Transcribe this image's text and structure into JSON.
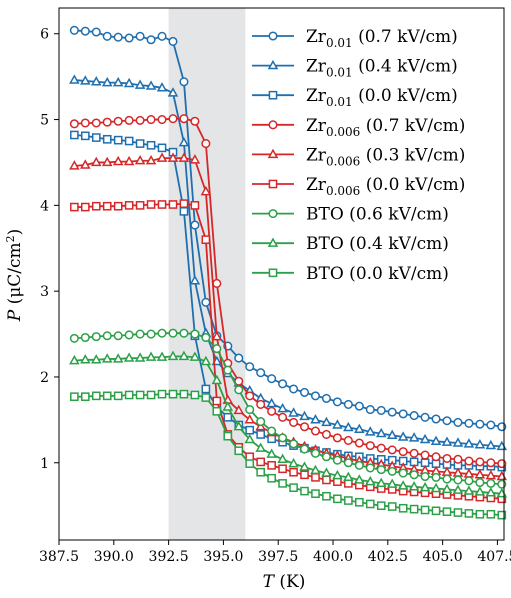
{
  "chart_data": {
    "type": "line",
    "xlabel_var": "T",
    "xlabel_unit": "(K)",
    "ylabel_var": "P",
    "ylabel_unit_pre": "(μC/cm",
    "ylabel_unit_sup": "2",
    "ylabel_unit_post": ")",
    "xlim": [
      387.5,
      407.8
    ],
    "ylim": [
      0.1,
      6.3
    ],
    "xticks": [
      387.5,
      390.0,
      392.5,
      395.0,
      397.5,
      400.0,
      402.5,
      405.0,
      407.5
    ],
    "xtick_labels": [
      "387.5",
      "390.0",
      "392.5",
      "395.0",
      "397.5",
      "400.0",
      "402.5",
      "405.0",
      "407.5"
    ],
    "yticks": [
      1,
      2,
      3,
      4,
      5,
      6
    ],
    "ytick_labels": [
      "1",
      "2",
      "3",
      "4",
      "5",
      "6"
    ],
    "grid": false,
    "legend_position": "top-right",
    "shaded_region": {
      "x": [
        392.5,
        396.0
      ],
      "color": "#e4e5e7"
    },
    "series": [
      {
        "name_main": "Zr",
        "name_sub": "0.01",
        "name_suffix": " (0.7 kV/cm)",
        "color": "#1f6faf",
        "marker": "circle",
        "x": [
          388.2,
          388.7,
          389.2,
          389.7,
          390.2,
          390.7,
          391.2,
          391.7,
          392.2,
          392.7,
          393.2,
          393.7,
          394.2,
          394.7,
          395.2,
          395.7,
          396.2,
          396.7,
          397.2,
          397.7,
          398.2,
          398.7,
          399.2,
          399.7,
          400.2,
          400.7,
          401.2,
          401.7,
          402.2,
          402.7,
          403.2,
          403.7,
          404.2,
          404.7,
          405.2,
          405.7,
          406.2,
          406.7,
          407.2,
          407.7
        ],
        "y": [
          6.04,
          6.03,
          6.02,
          5.97,
          5.96,
          5.95,
          5.97,
          5.93,
          5.97,
          5.91,
          5.44,
          3.77,
          2.87,
          2.48,
          2.36,
          2.22,
          2.12,
          2.05,
          1.98,
          1.92,
          1.86,
          1.82,
          1.78,
          1.75,
          1.71,
          1.68,
          1.66,
          1.62,
          1.61,
          1.59,
          1.57,
          1.55,
          1.53,
          1.51,
          1.49,
          1.47,
          1.46,
          1.45,
          1.44,
          1.42
        ]
      },
      {
        "name_main": "Zr",
        "name_sub": "0.01",
        "name_suffix": " (0.4 kV/cm)",
        "color": "#1f6faf",
        "marker": "triangle",
        "x": [
          388.2,
          388.7,
          389.2,
          389.7,
          390.2,
          390.7,
          391.2,
          391.7,
          392.2,
          392.7,
          393.2,
          393.7,
          394.2,
          394.7,
          395.2,
          395.7,
          396.2,
          396.7,
          397.2,
          397.7,
          398.2,
          398.7,
          399.2,
          399.7,
          400.2,
          400.7,
          401.2,
          401.7,
          402.2,
          402.7,
          403.2,
          403.7,
          404.2,
          404.7,
          405.2,
          405.7,
          406.2,
          406.7,
          407.2,
          407.7
        ],
        "y": [
          5.46,
          5.45,
          5.44,
          5.43,
          5.43,
          5.42,
          5.4,
          5.39,
          5.37,
          5.31,
          4.73,
          3.12,
          2.51,
          2.18,
          2.04,
          1.93,
          1.84,
          1.75,
          1.69,
          1.63,
          1.58,
          1.54,
          1.5,
          1.47,
          1.44,
          1.41,
          1.39,
          1.36,
          1.34,
          1.32,
          1.3,
          1.29,
          1.27,
          1.25,
          1.24,
          1.23,
          1.22,
          1.21,
          1.2,
          1.19
        ]
      },
      {
        "name_main": "Zr",
        "name_sub": "0.01",
        "name_suffix": " (0.0 kV/cm)",
        "color": "#1f6faf",
        "marker": "square",
        "x": [
          388.2,
          388.7,
          389.2,
          389.7,
          390.2,
          390.7,
          391.2,
          391.7,
          392.2,
          392.7,
          393.2,
          393.7,
          394.2,
          394.7,
          395.2,
          395.7,
          396.2,
          396.7,
          397.2,
          397.7,
          398.2,
          398.7,
          399.2,
          399.7,
          400.2,
          400.7,
          401.2,
          401.7,
          402.2,
          402.7,
          403.2,
          403.7,
          404.2,
          404.7,
          405.2,
          405.7,
          406.2,
          406.7,
          407.2,
          407.7
        ],
        "y": [
          4.82,
          4.81,
          4.79,
          4.77,
          4.76,
          4.75,
          4.72,
          4.7,
          4.67,
          4.62,
          3.93,
          2.48,
          1.86,
          1.65,
          1.53,
          1.44,
          1.38,
          1.33,
          1.28,
          1.24,
          1.2,
          1.17,
          1.14,
          1.12,
          1.1,
          1.08,
          1.07,
          1.05,
          1.04,
          1.03,
          1.02,
          1.01,
          1.0,
          0.99,
          0.98,
          0.97,
          0.97,
          0.96,
          0.96,
          0.95
        ]
      },
      {
        "name_main": "Zr",
        "name_sub": "0.006",
        "name_suffix": " (0.7 kV/cm)",
        "color": "#d62728",
        "marker": "circle",
        "x": [
          388.2,
          388.7,
          389.2,
          389.7,
          390.2,
          390.7,
          391.2,
          391.7,
          392.2,
          392.7,
          393.2,
          393.7,
          394.2,
          394.7,
          395.2,
          395.7,
          396.2,
          396.7,
          397.2,
          397.7,
          398.2,
          398.7,
          399.2,
          399.7,
          400.2,
          400.7,
          401.2,
          401.7,
          402.2,
          402.7,
          403.2,
          403.7,
          404.2,
          404.7,
          405.2,
          405.7,
          406.2,
          406.7,
          407.2,
          407.7
        ],
        "y": [
          4.95,
          4.96,
          4.96,
          4.97,
          4.98,
          4.99,
          4.99,
          5.0,
          5.0,
          5.01,
          5.01,
          4.98,
          4.72,
          3.09,
          2.16,
          1.95,
          1.78,
          1.68,
          1.6,
          1.53,
          1.47,
          1.42,
          1.37,
          1.33,
          1.29,
          1.26,
          1.23,
          1.2,
          1.17,
          1.15,
          1.13,
          1.11,
          1.09,
          1.07,
          1.05,
          1.04,
          1.02,
          1.01,
          1.0,
          0.99
        ]
      },
      {
        "name_main": "Zr",
        "name_sub": "0.006",
        "name_suffix": " (0.3 kV/cm)",
        "color": "#d62728",
        "marker": "triangle",
        "x": [
          388.2,
          388.7,
          389.2,
          389.7,
          390.2,
          390.7,
          391.2,
          391.7,
          392.2,
          392.7,
          393.2,
          393.7,
          394.2,
          394.7,
          395.2,
          395.7,
          396.2,
          396.7,
          397.2,
          397.7,
          398.2,
          398.7,
          399.2,
          399.7,
          400.2,
          400.7,
          401.2,
          401.7,
          402.2,
          402.7,
          403.2,
          403.7,
          404.2,
          404.7,
          405.2,
          405.7,
          406.2,
          406.7,
          407.2,
          407.7
        ],
        "y": [
          4.46,
          4.47,
          4.5,
          4.5,
          4.51,
          4.51,
          4.52,
          4.52,
          4.55,
          4.55,
          4.55,
          4.53,
          4.16,
          2.47,
          1.73,
          1.61,
          1.5,
          1.42,
          1.35,
          1.29,
          1.24,
          1.19,
          1.15,
          1.11,
          1.08,
          1.05,
          1.02,
          1.0,
          0.98,
          0.96,
          0.94,
          0.92,
          0.91,
          0.9,
          0.89,
          0.88,
          0.87,
          0.86,
          0.85,
          0.84
        ]
      },
      {
        "name_main": "Zr",
        "name_sub": "0.006",
        "name_suffix": " (0.0 kV/cm)",
        "color": "#d62728",
        "marker": "square",
        "x": [
          388.2,
          388.7,
          389.2,
          389.7,
          390.2,
          390.7,
          391.2,
          391.7,
          392.2,
          392.7,
          393.2,
          393.7,
          394.2,
          394.7,
          395.2,
          395.7,
          396.2,
          396.7,
          397.2,
          397.7,
          398.2,
          398.7,
          399.2,
          399.7,
          400.2,
          400.7,
          401.2,
          401.7,
          402.2,
          402.7,
          403.2,
          403.7,
          404.2,
          404.7,
          405.2,
          405.7,
          406.2,
          406.7,
          407.2,
          407.7
        ],
        "y": [
          3.98,
          3.98,
          3.99,
          3.99,
          3.99,
          4.0,
          4.0,
          4.01,
          4.01,
          4.01,
          4.02,
          4.0,
          3.6,
          1.72,
          1.33,
          1.18,
          1.07,
          1.01,
          0.97,
          0.93,
          0.89,
          0.86,
          0.83,
          0.8,
          0.78,
          0.76,
          0.74,
          0.72,
          0.7,
          0.69,
          0.67,
          0.66,
          0.65,
          0.64,
          0.63,
          0.62,
          0.61,
          0.6,
          0.59,
          0.58
        ]
      },
      {
        "name_main": "BTO",
        "name_sub": "",
        "name_suffix": " (0.6 kV/cm)",
        "color": "#2ca048",
        "marker": "circle",
        "x": [
          388.2,
          388.7,
          389.2,
          389.7,
          390.2,
          390.7,
          391.2,
          391.7,
          392.2,
          392.7,
          393.2,
          393.7,
          394.2,
          394.7,
          395.2,
          395.7,
          396.2,
          396.7,
          397.2,
          397.7,
          398.2,
          398.7,
          399.2,
          399.7,
          400.2,
          400.7,
          401.2,
          401.7,
          402.2,
          402.7,
          403.2,
          403.7,
          404.2,
          404.7,
          405.2,
          405.7,
          406.2,
          406.7,
          407.2,
          407.7
        ],
        "y": [
          2.45,
          2.46,
          2.47,
          2.48,
          2.48,
          2.49,
          2.5,
          2.5,
          2.51,
          2.51,
          2.51,
          2.5,
          2.46,
          2.33,
          2.08,
          1.85,
          1.62,
          1.48,
          1.37,
          1.29,
          1.22,
          1.16,
          1.11,
          1.07,
          1.03,
          1.0,
          0.97,
          0.94,
          0.92,
          0.9,
          0.88,
          0.86,
          0.84,
          0.83,
          0.81,
          0.8,
          0.79,
          0.77,
          0.76,
          0.75
        ]
      },
      {
        "name_main": "BTO",
        "name_sub": "",
        "name_suffix": " (0.4 kV/cm)",
        "color": "#2ca048",
        "marker": "triangle",
        "x": [
          388.2,
          388.7,
          389.2,
          389.7,
          390.2,
          390.7,
          391.2,
          391.7,
          392.2,
          392.7,
          393.2,
          393.7,
          394.2,
          394.7,
          395.2,
          395.7,
          396.2,
          396.7,
          397.2,
          397.7,
          398.2,
          398.7,
          399.2,
          399.7,
          400.2,
          400.7,
          401.2,
          401.7,
          402.2,
          402.7,
          403.2,
          403.7,
          404.2,
          404.7,
          405.2,
          405.7,
          406.2,
          406.7,
          407.2,
          407.7
        ],
        "y": [
          2.19,
          2.2,
          2.2,
          2.21,
          2.21,
          2.22,
          2.22,
          2.23,
          2.23,
          2.24,
          2.24,
          2.23,
          2.18,
          1.96,
          1.65,
          1.42,
          1.27,
          1.17,
          1.1,
          1.04,
          0.99,
          0.95,
          0.91,
          0.88,
          0.85,
          0.83,
          0.8,
          0.78,
          0.76,
          0.75,
          0.73,
          0.72,
          0.71,
          0.7,
          0.69,
          0.68,
          0.67,
          0.66,
          0.65,
          0.64
        ]
      },
      {
        "name_main": "BTO",
        "name_sub": "",
        "name_suffix": " (0.0 kV/cm)",
        "color": "#2ca048",
        "marker": "square",
        "x": [
          388.2,
          388.7,
          389.2,
          389.7,
          390.2,
          390.7,
          391.2,
          391.7,
          392.2,
          392.7,
          393.2,
          393.7,
          394.2,
          394.7,
          395.2,
          395.7,
          396.2,
          396.7,
          397.2,
          397.7,
          398.2,
          398.7,
          399.2,
          399.7,
          400.2,
          400.7,
          401.2,
          401.7,
          402.2,
          402.7,
          403.2,
          403.7,
          404.2,
          404.7,
          405.2,
          405.7,
          406.2,
          406.7,
          407.2,
          407.7
        ],
        "y": [
          1.77,
          1.77,
          1.78,
          1.78,
          1.78,
          1.79,
          1.79,
          1.79,
          1.8,
          1.8,
          1.8,
          1.79,
          1.76,
          1.6,
          1.31,
          1.14,
          0.99,
          0.89,
          0.82,
          0.76,
          0.71,
          0.67,
          0.64,
          0.61,
          0.58,
          0.56,
          0.54,
          0.52,
          0.5,
          0.49,
          0.47,
          0.46,
          0.45,
          0.44,
          0.43,
          0.42,
          0.41,
          0.4,
          0.4,
          0.39
        ]
      }
    ]
  }
}
